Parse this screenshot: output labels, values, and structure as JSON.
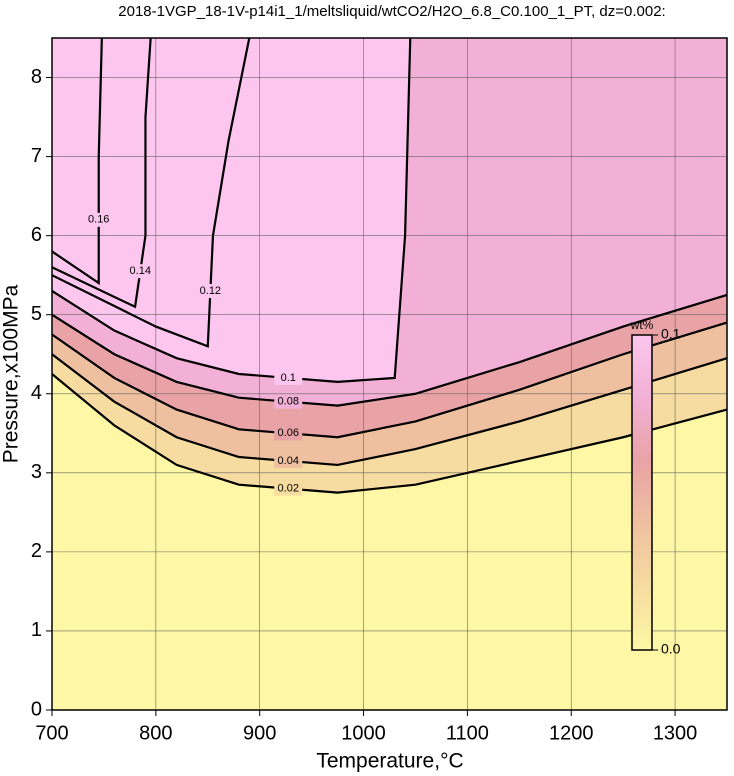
{
  "chart_data": {
    "type": "contour",
    "title": "2018-1VGP_18-1V-p14i1_1/meltsliquid/wtCO2/H2O_6.8_C0.100_1_PT, dz=0.002:",
    "x_label": "Temperature,°C",
    "y_label": "Pressure,x100MPa",
    "xlim": [
      700,
      1350
    ],
    "ylim": [
      0,
      8.5
    ],
    "xticks": [
      700,
      800,
      900,
      1000,
      1100,
      1200,
      1300
    ],
    "yticks": [
      0,
      1,
      2,
      3,
      4,
      5,
      6,
      7,
      8
    ],
    "grid": true,
    "background_color": "#fdf7a6",
    "colorbar": {
      "label": "wt%",
      "ticks": [
        {
          "value": 0,
          "label": "0.0"
        },
        0.1
      ]
    },
    "series": [
      {
        "level": 0.02,
        "color": "#f6dca0",
        "x": [
          700,
          760,
          820,
          880,
          975,
          1050,
          1150,
          1250,
          1350
        ],
        "y": [
          4.25,
          3.6,
          3.1,
          2.85,
          2.75,
          2.85,
          3.15,
          3.45,
          3.8
        ]
      },
      {
        "level": 0.04,
        "color": "#efc0a0",
        "x": [
          700,
          760,
          820,
          880,
          975,
          1050,
          1150,
          1250,
          1350
        ],
        "y": [
          4.5,
          3.9,
          3.45,
          3.2,
          3.1,
          3.3,
          3.65,
          4.05,
          4.45
        ]
      },
      {
        "level": 0.06,
        "color": "#e9a3a6",
        "x": [
          700,
          760,
          820,
          880,
          975,
          1050,
          1150,
          1250,
          1350
        ],
        "y": [
          4.75,
          4.2,
          3.8,
          3.55,
          3.45,
          3.65,
          4.05,
          4.5,
          4.9
        ]
      },
      {
        "level": 0.08,
        "color": "#f2b0d6",
        "x": [
          700,
          760,
          820,
          880,
          975,
          1050,
          1150,
          1250,
          1350
        ],
        "y": [
          5.0,
          4.5,
          4.15,
          3.95,
          3.85,
          4.0,
          4.4,
          4.85,
          5.25
        ]
      },
      {
        "level": 0.1,
        "color": "#fcc6ee",
        "x": [
          700,
          760,
          820,
          880,
          975,
          1030,
          1040,
          1045
        ],
        "y": [
          5.3,
          4.8,
          4.45,
          4.25,
          4.15,
          4.2,
          6.0,
          8.5
        ]
      },
      {
        "level": 0.12,
        "color": "#fcc6ee",
        "x": [
          700,
          800,
          850,
          855,
          870,
          890
        ],
        "y": [
          5.5,
          4.85,
          4.6,
          6.0,
          7.2,
          8.5
        ]
      },
      {
        "level": 0.14,
        "color": "#fcc6ee",
        "x": [
          700,
          780,
          790,
          790,
          795
        ],
        "y": [
          5.6,
          5.1,
          6.0,
          7.5,
          8.5
        ]
      },
      {
        "level": 0.16,
        "color": "#fcc6ee",
        "x": [
          700,
          745,
          745,
          748
        ],
        "y": [
          5.8,
          5.4,
          7.0,
          8.5
        ]
      }
    ]
  }
}
